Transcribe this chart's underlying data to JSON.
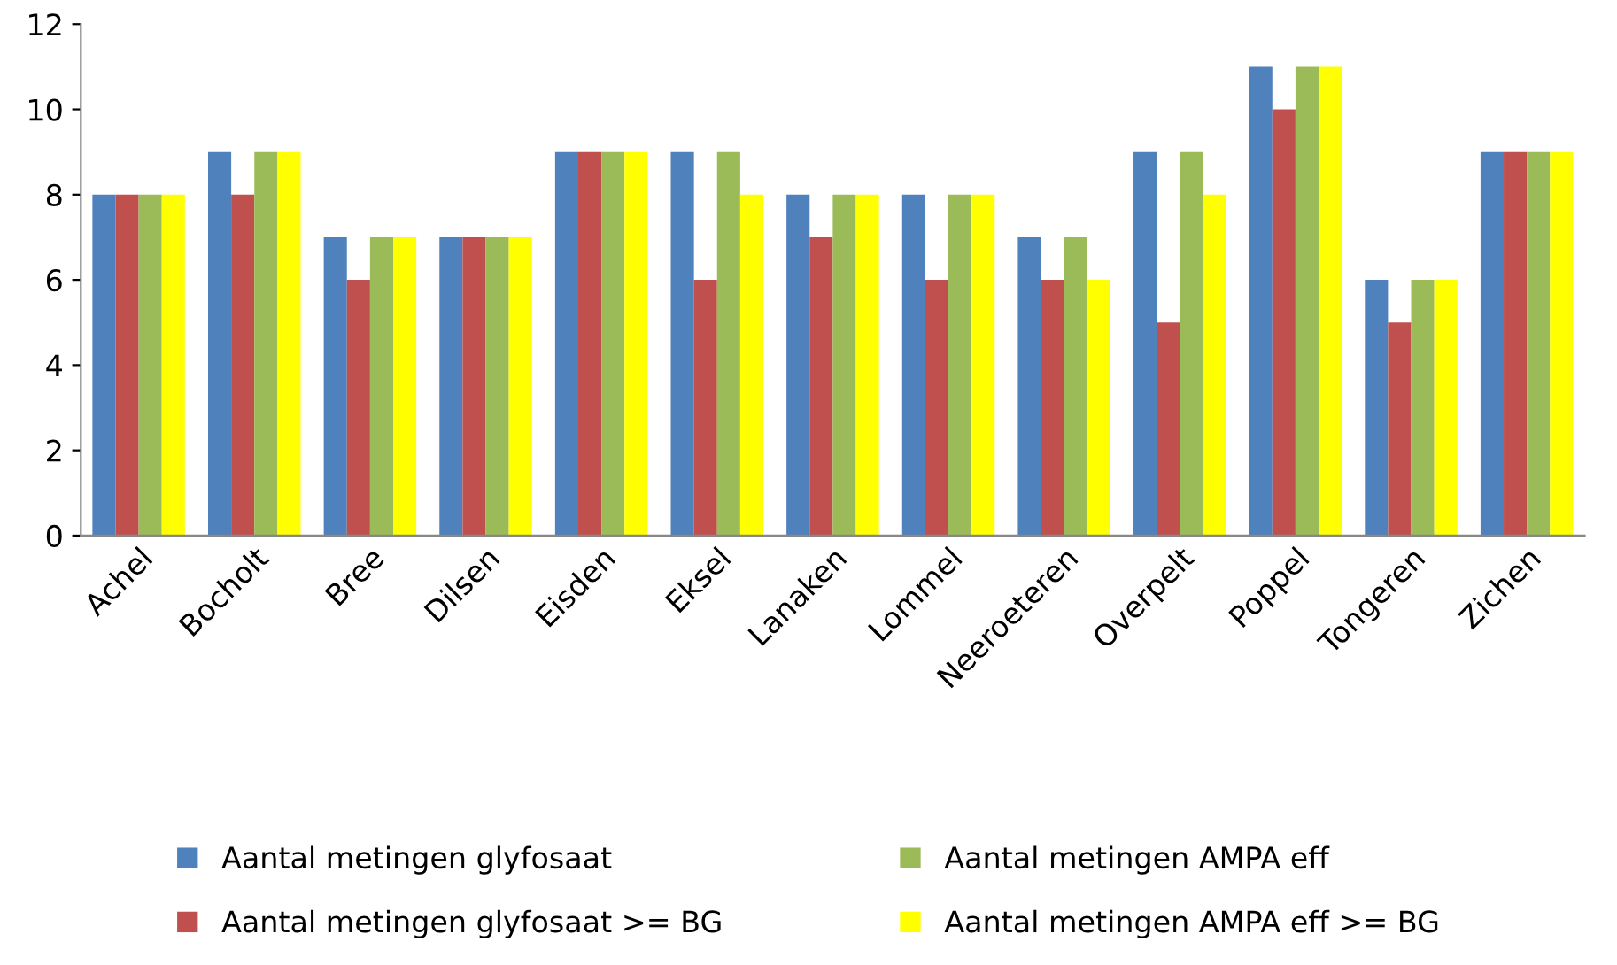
{
  "chart_data": {
    "type": "bar",
    "categories": [
      "Achel",
      "Bocholt",
      "Bree",
      "Dilsen",
      "Eisden",
      "Eksel",
      "Lanaken",
      "Lommel",
      "Neeroeteren",
      "Overpelt",
      "Poppel",
      "Tongeren",
      "Zichen"
    ],
    "series": [
      {
        "name": "Aantal metingen glyfosaat",
        "color": "#4f81bd",
        "values": [
          8,
          9,
          7,
          7,
          9,
          9,
          8,
          8,
          7,
          9,
          11,
          6,
          9
        ]
      },
      {
        "name": "Aantal metingen glyfosaat >= BG",
        "color": "#c0504d",
        "values": [
          8,
          8,
          6,
          7,
          9,
          6,
          7,
          6,
          6,
          5,
          10,
          5,
          9
        ]
      },
      {
        "name": "Aantal metingen AMPA eff",
        "color": "#9bbb59",
        "values": [
          8,
          9,
          7,
          7,
          9,
          9,
          8,
          8,
          7,
          9,
          11,
          6,
          9
        ]
      },
      {
        "name": "Aantal metingen AMPA eff >= BG",
        "color": "#ffff00",
        "values": [
          8,
          9,
          7,
          7,
          9,
          8,
          8,
          8,
          6,
          8,
          11,
          6,
          9
        ]
      }
    ],
    "ylim": [
      0,
      12
    ],
    "yticks": [
      0,
      2,
      4,
      6,
      8,
      10,
      12
    ],
    "grid": false,
    "legend": "bottom"
  }
}
